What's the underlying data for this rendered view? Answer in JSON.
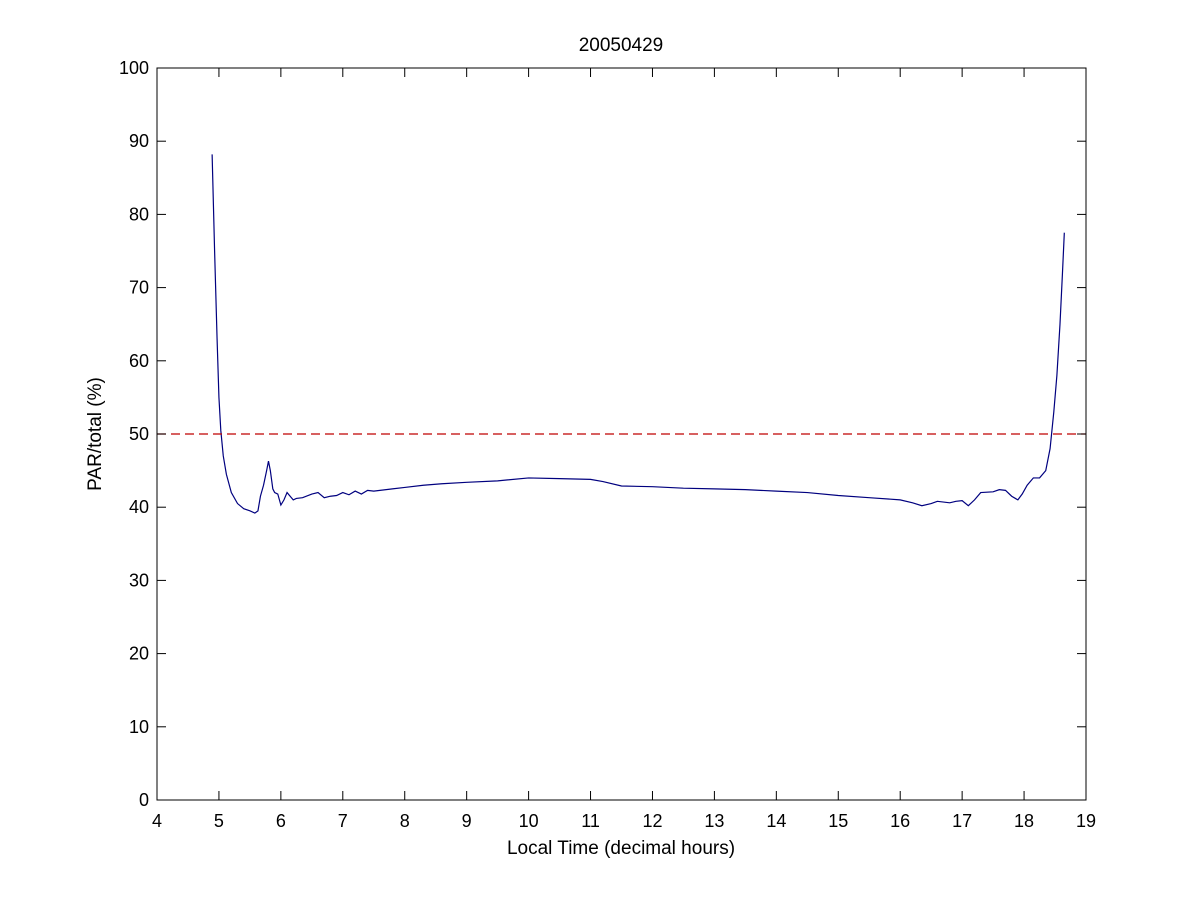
{
  "chart_data": {
    "type": "line",
    "title": "20050429",
    "xlabel": "Local Time (decimal hours)",
    "ylabel": "PAR/total (%)",
    "xlim": [
      4,
      19
    ],
    "ylim": [
      0,
      100
    ],
    "xticks": [
      4,
      5,
      6,
      7,
      8,
      9,
      10,
      11,
      12,
      13,
      14,
      15,
      16,
      17,
      18,
      19
    ],
    "yticks": [
      0,
      10,
      20,
      30,
      40,
      50,
      60,
      70,
      80,
      90,
      100
    ],
    "grid": false,
    "colors": {
      "series": "#00007f",
      "reference": "#bf0000",
      "axes": "#000000",
      "background": "#ffffff"
    },
    "series": [
      {
        "line_style": "solid",
        "x": [
          4.89,
          4.93,
          4.97,
          5.0,
          5.03,
          5.07,
          5.12,
          5.2,
          5.3,
          5.4,
          5.5,
          5.58,
          5.63,
          5.67,
          5.72,
          5.77,
          5.8,
          5.83,
          5.87,
          5.9,
          5.95,
          6.0,
          6.05,
          6.1,
          6.15,
          6.2,
          6.25,
          6.35,
          6.5,
          6.6,
          6.7,
          6.8,
          6.9,
          7.0,
          7.1,
          7.2,
          7.3,
          7.4,
          7.5,
          7.6,
          7.8,
          8.0,
          8.3,
          8.6,
          9.0,
          9.5,
          10.0,
          10.5,
          11.0,
          11.2,
          11.5,
          12.0,
          12.5,
          13.0,
          13.5,
          14.0,
          14.5,
          15.0,
          15.5,
          16.0,
          16.2,
          16.35,
          16.5,
          16.6,
          16.8,
          16.9,
          17.0,
          17.1,
          17.2,
          17.3,
          17.5,
          17.6,
          17.7,
          17.8,
          17.9,
          17.97,
          18.05,
          18.15,
          18.25,
          18.35,
          18.42,
          18.48,
          18.53,
          18.58,
          18.62,
          18.65
        ],
        "y": [
          88.2,
          75.0,
          63.0,
          55.0,
          50.5,
          47.0,
          44.5,
          42.0,
          40.5,
          39.8,
          39.5,
          39.2,
          39.5,
          41.5,
          43.0,
          45.0,
          46.3,
          45.0,
          42.5,
          42.0,
          41.8,
          40.3,
          41.0,
          42.0,
          41.5,
          41.0,
          41.2,
          41.3,
          41.8,
          42.0,
          41.3,
          41.5,
          41.6,
          42.0,
          41.7,
          42.2,
          41.8,
          42.3,
          42.2,
          42.3,
          42.5,
          42.7,
          43.0,
          43.2,
          43.4,
          43.6,
          44.0,
          43.9,
          43.8,
          43.5,
          42.9,
          42.8,
          42.6,
          42.5,
          42.4,
          42.2,
          42.0,
          41.6,
          41.3,
          41.0,
          40.6,
          40.2,
          40.5,
          40.8,
          40.6,
          40.8,
          40.9,
          40.2,
          41.0,
          42.0,
          42.1,
          42.4,
          42.3,
          41.5,
          41.0,
          41.8,
          43.0,
          44.0,
          44.0,
          45.0,
          48.0,
          53.0,
          58.0,
          65.0,
          72.0,
          77.5
        ]
      },
      {
        "line_style": "dashed",
        "x": [
          4,
          19
        ],
        "y": [
          50,
          50
        ]
      }
    ]
  }
}
